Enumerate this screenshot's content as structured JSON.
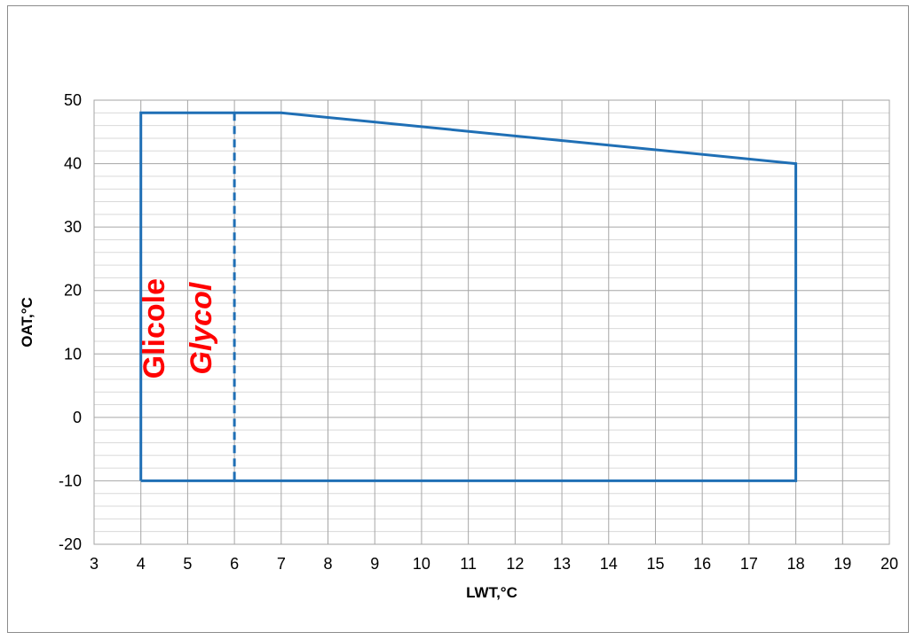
{
  "chart_data": {
    "type": "line",
    "title": "",
    "xlabel": "LWT,°C",
    "ylabel": "OAT,°C",
    "xlim": [
      3,
      20
    ],
    "ylim": [
      -20,
      50
    ],
    "x_ticks": [
      3,
      4,
      5,
      6,
      7,
      8,
      9,
      10,
      11,
      12,
      13,
      14,
      15,
      16,
      17,
      18,
      19,
      20
    ],
    "y_ticks": [
      -20,
      -10,
      0,
      10,
      20,
      30,
      40,
      50
    ],
    "y_minor_step": 2,
    "grid": true,
    "series": [
      {
        "style": "solid",
        "color": "#1f6fb5",
        "points": [
          [
            4,
            -10
          ],
          [
            4,
            48
          ],
          [
            7,
            48
          ],
          [
            18,
            40
          ],
          [
            18,
            -10
          ],
          [
            4,
            -10
          ]
        ]
      },
      {
        "style": "dashed",
        "color": "#1f6fb5",
        "points": [
          [
            6,
            48
          ],
          [
            6,
            -10
          ]
        ]
      }
    ],
    "annotations": [
      {
        "text": "Glicole",
        "x": 4.5,
        "y": 14,
        "rotation": -90,
        "italic": false,
        "color": "#ff0000"
      },
      {
        "text": "Glycol",
        "x": 5.5,
        "y": 14,
        "rotation": -90,
        "italic": true,
        "color": "#ff0000"
      }
    ]
  }
}
